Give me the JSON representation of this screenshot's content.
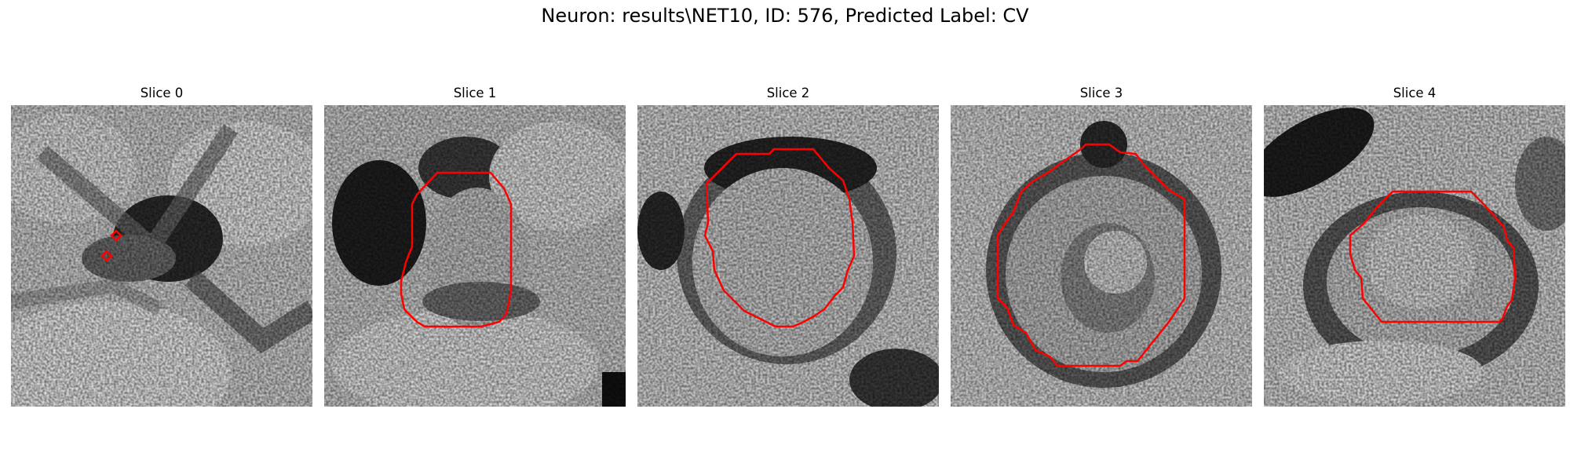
{
  "figure": {
    "title": "Neuron: results\\NET10, ID: 576, Predicted Label: CV",
    "contour_color": "#ff0000"
  },
  "slices": [
    {
      "title": "Slice 0"
    },
    {
      "title": "Slice 1"
    },
    {
      "title": "Slice 2"
    },
    {
      "title": "Slice 3"
    },
    {
      "title": "Slice 4"
    }
  ]
}
